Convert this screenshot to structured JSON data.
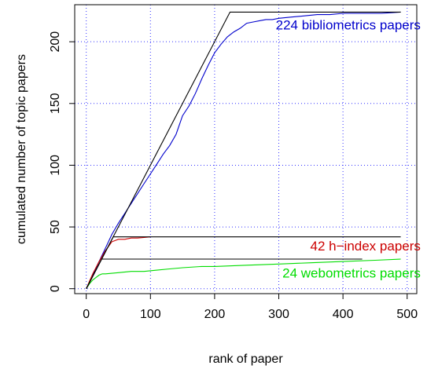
{
  "chart_data": {
    "type": "line",
    "title": "",
    "xlabel": "rank of paper",
    "ylabel": "cumulated  number of topic papers",
    "xlim": [
      -18,
      515
    ],
    "ylim": [
      -4,
      230
    ],
    "grid": true,
    "x_ticks": [
      "0",
      "100",
      "200",
      "300",
      "400",
      "500"
    ],
    "y_ticks": [
      "0",
      "50",
      "100",
      "150",
      "200"
    ],
    "colors": {
      "grid": "#3333ff",
      "bibliometrics": "#0000cc",
      "hindex": "#cc0000",
      "webometrics": "#00dd00",
      "ideal": "#000000"
    },
    "series": [
      {
        "key": "bibliometrics",
        "x": [
          0,
          10,
          20,
          30,
          40,
          50,
          60,
          70,
          80,
          90,
          100,
          110,
          120,
          130,
          140,
          150,
          160,
          170,
          180,
          190,
          200,
          210,
          220,
          230,
          240,
          250,
          260,
          270,
          280,
          290,
          300,
          320,
          340,
          360,
          380,
          400,
          420,
          440,
          460,
          490
        ],
        "y": [
          0,
          11,
          22,
          33,
          44,
          53,
          61,
          69,
          77,
          85,
          93,
          101,
          109,
          116,
          125,
          140,
          148,
          158,
          170,
          181,
          191,
          198,
          204,
          208,
          211,
          215,
          216,
          217,
          218,
          218,
          219,
          220,
          221,
          222,
          222,
          223,
          223,
          223,
          223,
          224
        ]
      },
      {
        "key": "hindex",
        "x": [
          0,
          10,
          20,
          30,
          40,
          50,
          60,
          70,
          80,
          100
        ],
        "y": [
          0,
          12,
          22,
          31,
          38,
          40,
          40,
          41,
          41,
          42
        ]
      },
      {
        "key": "webometrics",
        "x": [
          0,
          5,
          10,
          15,
          20,
          25,
          30,
          50,
          70,
          90,
          110,
          130,
          150,
          180,
          200,
          250,
          300,
          350,
          400,
          450,
          490
        ],
        "y": [
          0,
          4,
          7,
          9,
          11,
          12,
          12,
          13,
          14,
          14,
          15,
          16,
          17,
          18,
          18,
          19,
          20,
          21,
          22,
          23,
          24
        ]
      },
      {
        "key": "ideal-bibliometrics",
        "x": [
          0,
          224,
          490
        ],
        "y": [
          0,
          224,
          224
        ]
      },
      {
        "key": "ideal-hindex",
        "x": [
          0,
          42,
          490
        ],
        "y": [
          0,
          42,
          42
        ]
      },
      {
        "key": "ideal-webometrics",
        "x": [
          0,
          24,
          430
        ],
        "y": [
          0,
          24,
          24
        ]
      }
    ],
    "annotations": [
      {
        "text": "224 bibliometrics papers",
        "x": 521,
        "y": 210,
        "color_key": "bibliometrics"
      },
      {
        "text": "42 h−index papers",
        "x": 521,
        "y": 31,
        "color_key": "hindex"
      },
      {
        "text": "24 webometrics papers",
        "x": 521,
        "y": 9,
        "color_key": "webometrics"
      }
    ]
  }
}
